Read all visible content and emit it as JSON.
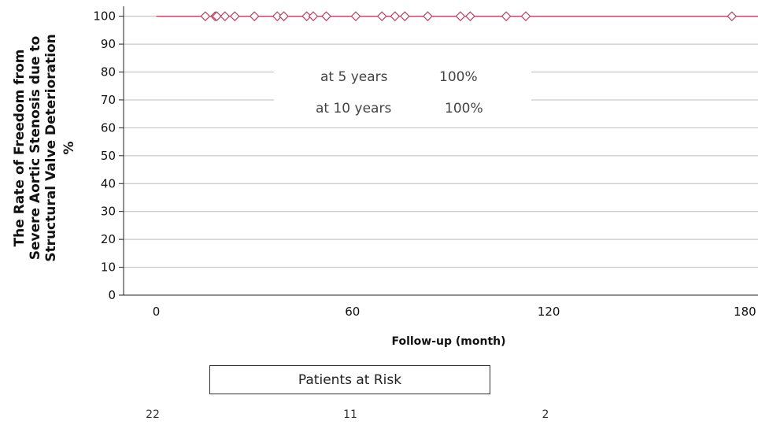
{
  "chart_data": {
    "type": "line",
    "title": "",
    "ylabel_lines": [
      "The Rate of Freedom from",
      "Severe Aortic Stenosis due to",
      "Structural Valve Deterioration",
      "%"
    ],
    "xlabel": "Follow-up (month)",
    "xlim": [
      -10,
      184
    ],
    "ylim": [
      0,
      103
    ],
    "x_ticks": [
      0,
      60,
      120,
      180
    ],
    "y_ticks": [
      0,
      10,
      20,
      30,
      40,
      50,
      60,
      70,
      80,
      90,
      100
    ],
    "grid": "horizontal",
    "line_color": "#c0395a",
    "series": [
      {
        "x": [
          0,
          184
        ],
        "y": [
          100,
          100
        ]
      }
    ],
    "censor_marks": {
      "y": 100,
      "x": [
        15,
        18,
        18.5,
        21,
        24,
        30,
        37,
        39,
        46,
        48,
        52,
        61,
        69,
        73,
        76,
        83,
        93,
        96,
        107,
        113,
        176
      ]
    },
    "annotations": [
      {
        "label": "at 5 years",
        "value": "100%"
      },
      {
        "label": "at 10 years",
        "value": "100%"
      }
    ]
  },
  "risk_table": {
    "title": "Patients at Risk",
    "values": [
      "22",
      "11",
      "2"
    ]
  }
}
